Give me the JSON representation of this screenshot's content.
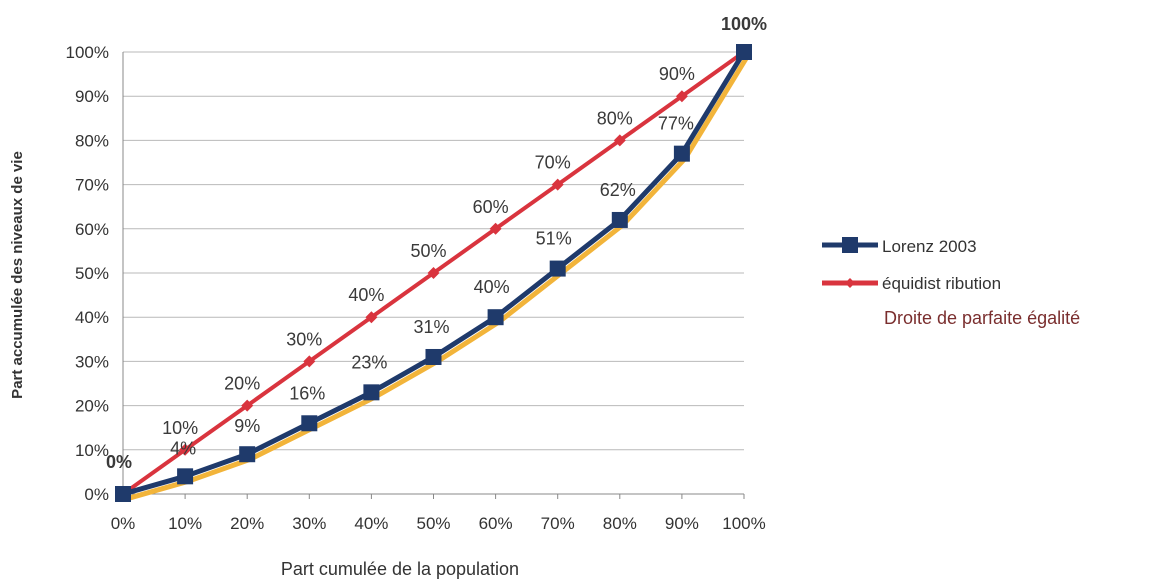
{
  "chart_data": {
    "type": "line",
    "x": [
      0,
      10,
      20,
      30,
      40,
      50,
      60,
      70,
      80,
      90,
      100
    ],
    "x_tick_labels": [
      "0%",
      "10%",
      "20%",
      "30%",
      "40%",
      "50%",
      "60%",
      "70%",
      "80%",
      "90%",
      "100%"
    ],
    "y_tick_labels": [
      "0%",
      "10%",
      "20%",
      "30%",
      "40%",
      "50%",
      "60%",
      "70%",
      "80%",
      "90%",
      "100%"
    ],
    "xlim": [
      0,
      100
    ],
    "ylim": [
      0,
      100
    ],
    "xlabel": "Part cumulée de la population",
    "ylabel": "Part accumulée des niveaux de vie",
    "grid": "horizontal",
    "legend_position": "right",
    "series": [
      {
        "name": "Lorenz 2003",
        "color": "#1f3a6b",
        "marker": "square",
        "values": [
          0,
          4,
          9,
          16,
          23,
          31,
          40,
          51,
          62,
          77,
          100
        ],
        "labels": [
          "0%",
          "4%",
          "9%",
          "16%",
          "23%",
          "31%",
          "40%",
          "51%",
          "62%",
          "77%",
          "100%"
        ]
      },
      {
        "name": "équidist ribution",
        "color": "#d9343e",
        "marker": "diamond",
        "values": [
          0,
          10,
          20,
          30,
          40,
          50,
          60,
          70,
          80,
          90,
          100
        ],
        "labels": [
          "",
          "10%",
          "20%",
          "30%",
          "40%",
          "50%",
          "60%",
          "70%",
          "80%",
          "90%",
          ""
        ]
      }
    ],
    "shadow_color": "#f2b43a",
    "annotation": "Droite de parfaite égalité"
  }
}
